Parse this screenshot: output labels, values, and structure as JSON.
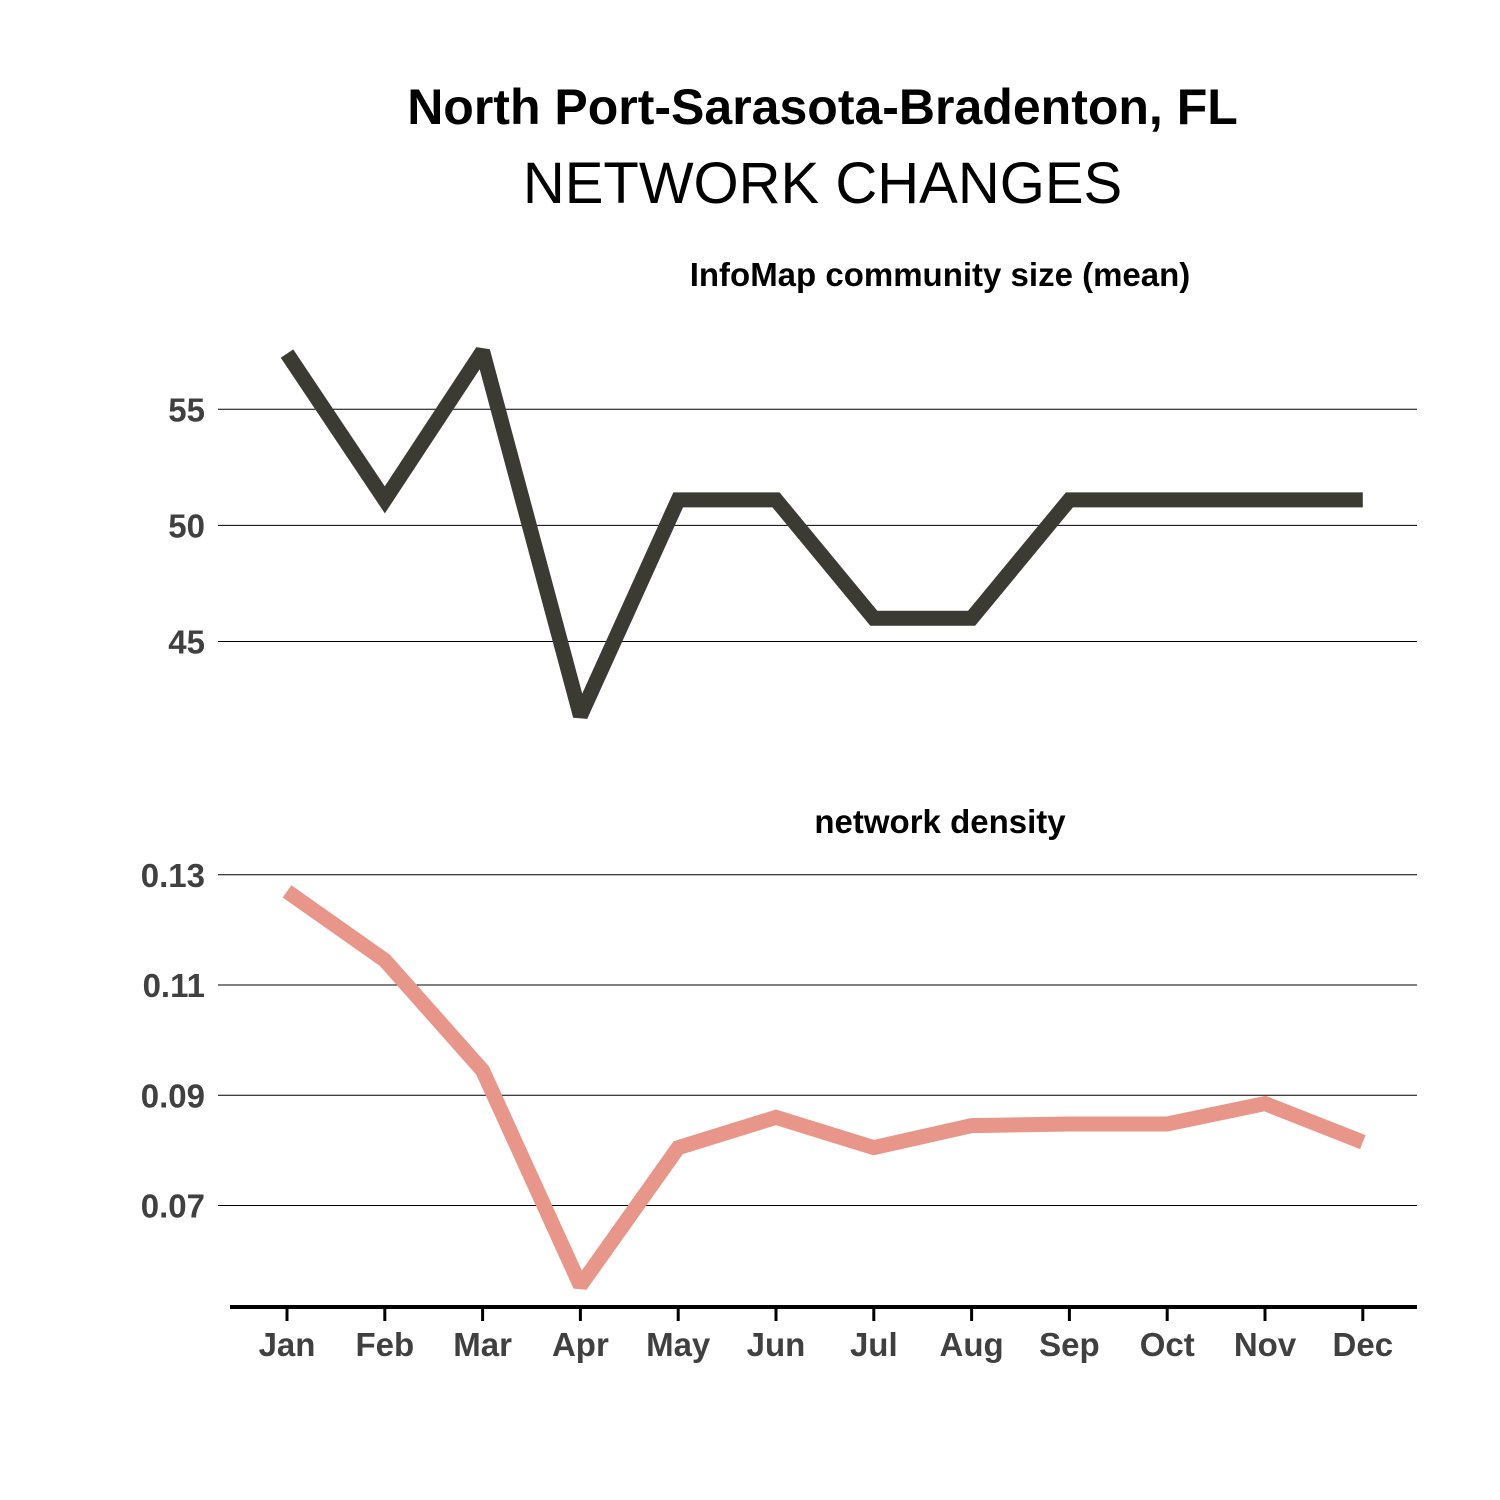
{
  "title": "North Port-Sarasota-Bradenton, FL",
  "subtitle": "NETWORK CHANGES",
  "chart_data": [
    {
      "type": "line",
      "title": "InfoMap community size (mean)",
      "categories": [
        "Jan",
        "Feb",
        "Mar",
        "Apr",
        "May",
        "Jun",
        "Jul",
        "Aug",
        "Sep",
        "Oct",
        "Nov",
        "Dec"
      ],
      "values": [
        57.4,
        51.1,
        57.5,
        41.8,
        51.1,
        51.1,
        46.0,
        46.0,
        51.1,
        51.1,
        51.1,
        51.1
      ],
      "yticks": [
        45,
        50,
        55
      ],
      "ylim": [
        40.5,
        58.5
      ],
      "color": "#3b3a33",
      "grid": true
    },
    {
      "type": "line",
      "title": "network density",
      "categories": [
        "Jan",
        "Feb",
        "Mar",
        "Apr",
        "May",
        "Jun",
        "Jul",
        "Aug",
        "Sep",
        "Oct",
        "Nov",
        "Dec"
      ],
      "values": [
        0.127,
        0.1145,
        0.0945,
        0.0555,
        0.0805,
        0.086,
        0.0805,
        0.0845,
        0.0848,
        0.0848,
        0.0885,
        0.0815
      ],
      "yticks": [
        0.07,
        0.09,
        0.11,
        0.13
      ],
      "ylim": [
        0.0525,
        0.1325
      ],
      "color": "#e8968a",
      "grid": true
    }
  ]
}
